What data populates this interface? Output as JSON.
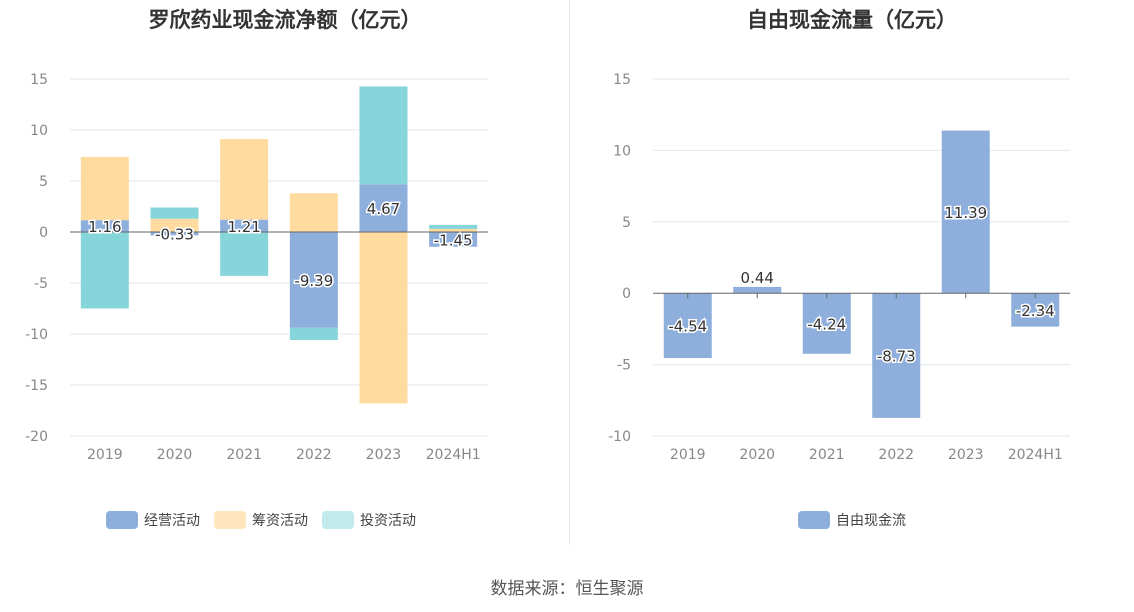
{
  "charts": {
    "left_title": "罗欣药业现金流净额（亿元）",
    "right_title": "自由现金流量（亿元）"
  },
  "source_text": "数据来源：恒生聚源",
  "colors": {
    "operating": "#8eaedc",
    "financing": "#ffdba0",
    "investing": "#86d5da",
    "free_cash_flow": "#8eaedc",
    "grid": "#e3e7ef",
    "zero_line": "#666666"
  },
  "chart_data": [
    {
      "type": "bar",
      "stacked": true,
      "title": "罗欣药业现金流净额（亿元）",
      "categories": [
        "2019",
        "2020",
        "2021",
        "2022",
        "2023",
        "2024H1"
      ],
      "ylim": [
        -20,
        15
      ],
      "yticks": [
        15,
        10,
        5,
        0,
        -5,
        -10,
        -15,
        -20
      ],
      "grid": true,
      "legend_position": "bottom",
      "series": [
        {
          "name": "经营活动",
          "values": [
            1.16,
            -0.33,
            1.21,
            -9.39,
            4.67,
            -1.45
          ],
          "labeled": true
        },
        {
          "name": "筹资活动",
          "values": [
            6.2,
            1.3,
            7.9,
            3.8,
            -16.8,
            0.3
          ]
        },
        {
          "name": "投资活动",
          "values": [
            -7.5,
            1.1,
            -4.3,
            -1.2,
            9.6,
            0.4
          ]
        }
      ],
      "data_labels": [
        "1.16",
        "-0.33",
        "1.21",
        "-9.39",
        "4.67",
        "-1.45"
      ]
    },
    {
      "type": "bar",
      "title": "自由现金流量（亿元）",
      "categories": [
        "2019",
        "2020",
        "2021",
        "2022",
        "2023",
        "2024H1"
      ],
      "ylim": [
        -10,
        15
      ],
      "yticks": [
        15,
        10,
        5,
        0,
        -5,
        -10
      ],
      "grid": true,
      "legend_position": "bottom",
      "series": [
        {
          "name": "自由现金流",
          "values": [
            -4.54,
            0.44,
            -4.24,
            -8.73,
            11.39,
            -2.34
          ]
        }
      ],
      "data_labels": [
        "-4.54",
        "0.44",
        "-4.24",
        "-8.73",
        "11.39",
        "-2.34"
      ]
    }
  ]
}
